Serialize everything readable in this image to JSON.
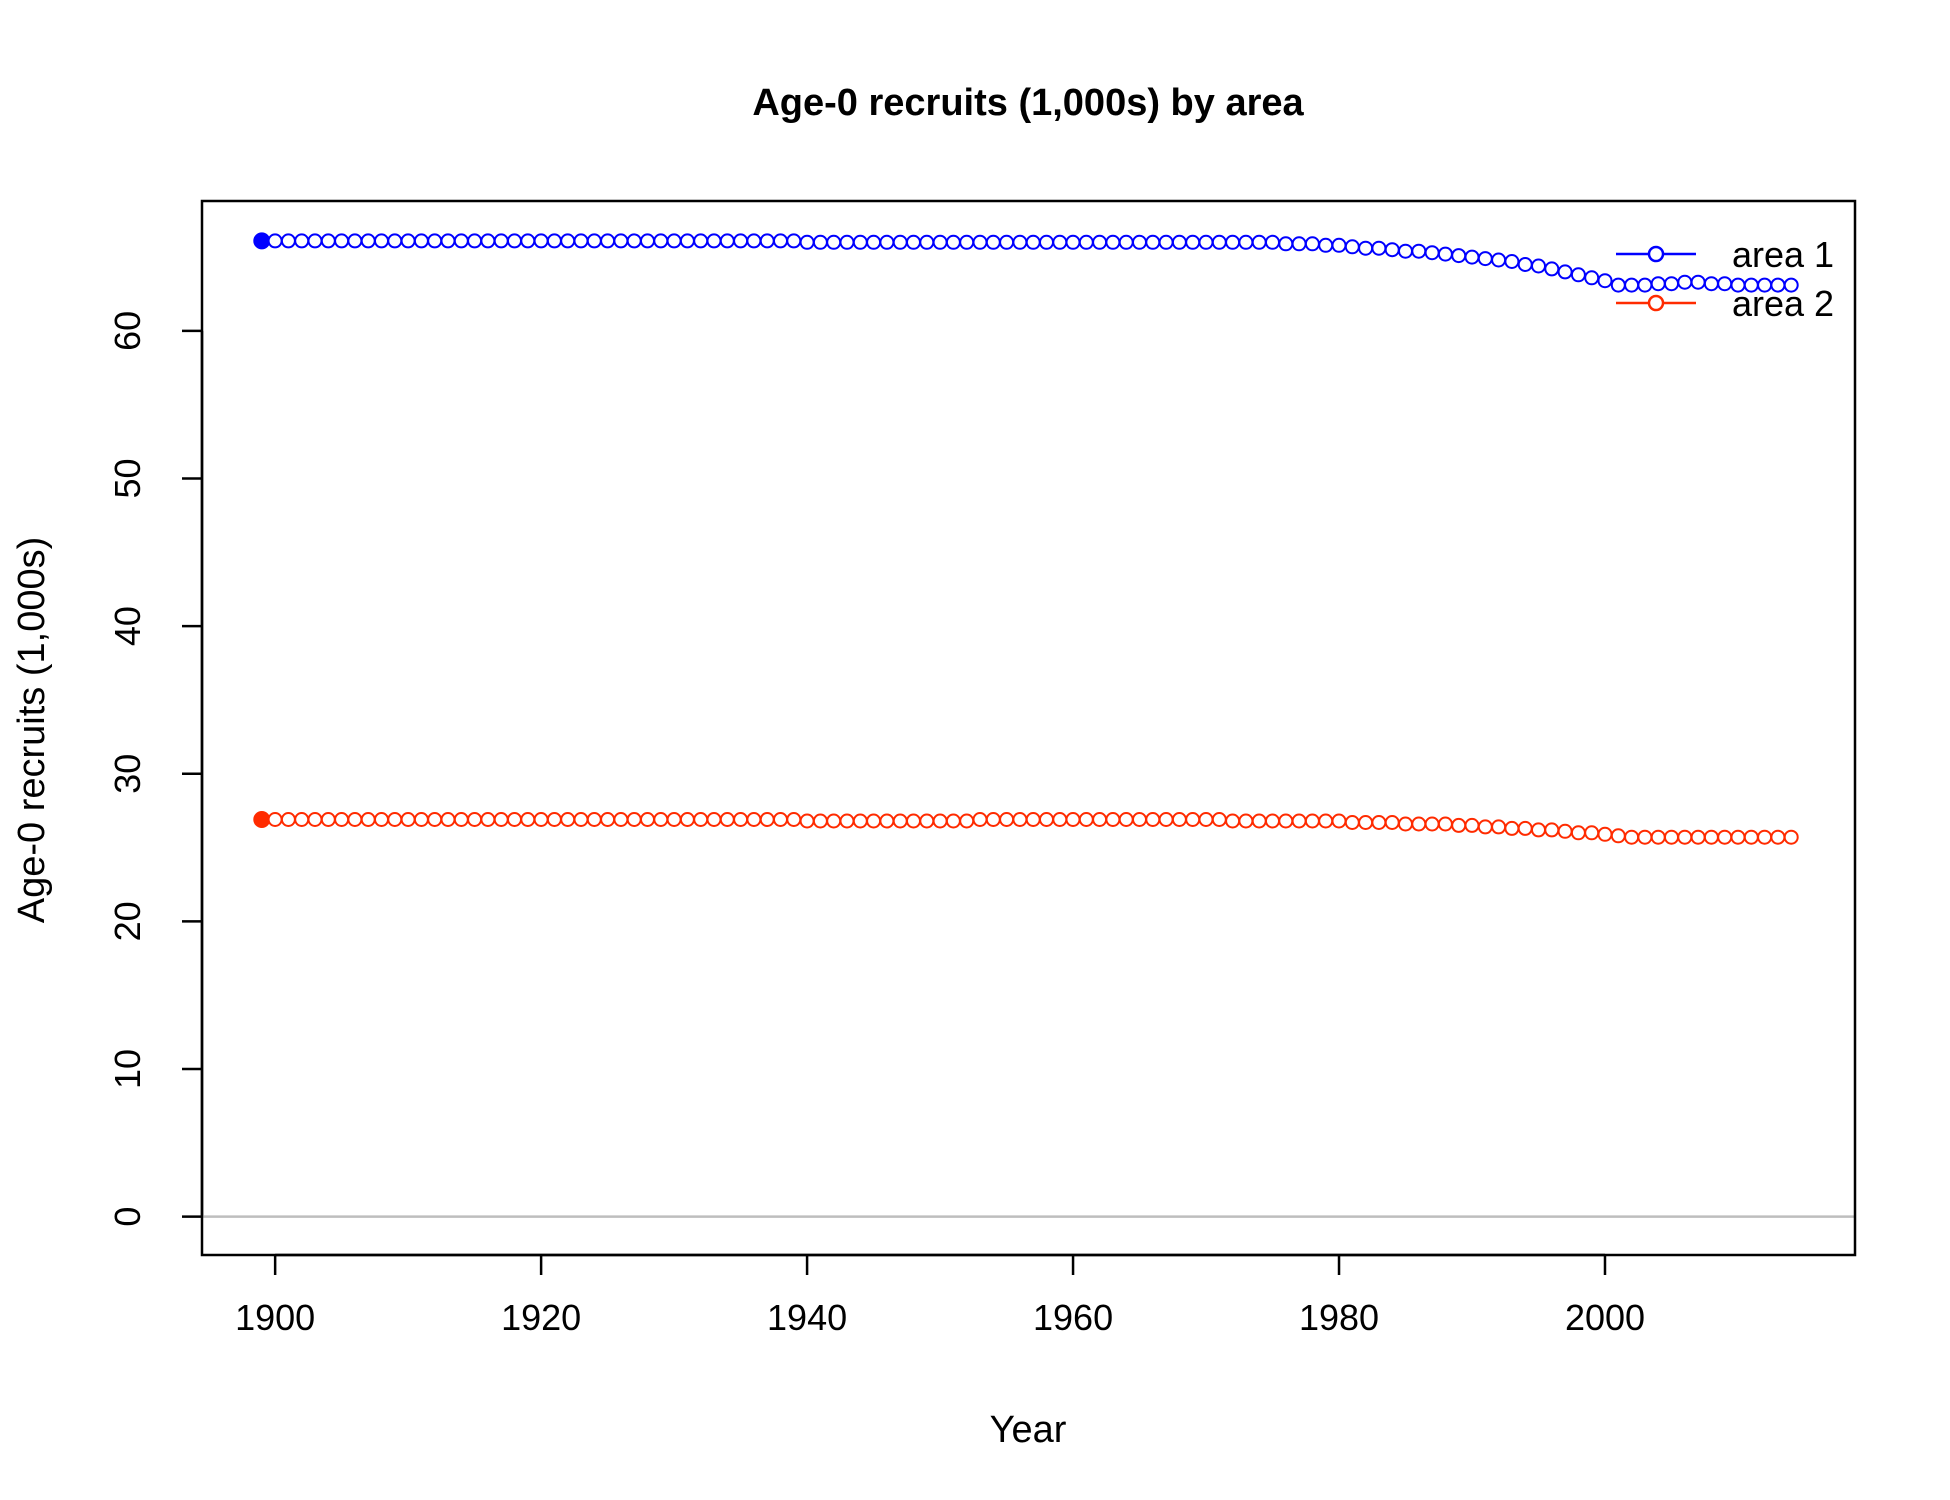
{
  "chart_data": {
    "type": "line",
    "title": "Age-0 recruits (1,000s) by area",
    "xlabel": "Year",
    "ylabel": "Age-0 recruits (1,000s)",
    "xlim": [
      1894.5,
      2018.8
    ],
    "ylim": [
      -2.6,
      68.8
    ],
    "xticks": [
      1900,
      1920,
      1940,
      1960,
      1980,
      2000
    ],
    "yticks": [
      0,
      10,
      20,
      30,
      40,
      50,
      60
    ],
    "reference_line": {
      "y": 0,
      "color": "#bebebe"
    },
    "grid": false,
    "legend": {
      "placement": "top-right",
      "entries": [
        "area 1",
        "area 2"
      ]
    },
    "x_start": 1899,
    "x_end": 2014,
    "series": [
      {
        "name": "area 1",
        "color": "#0000ff",
        "first_point_filled": true,
        "values": [
          66.1,
          66.1,
          66.1,
          66.1,
          66.1,
          66.1,
          66.1,
          66.1,
          66.1,
          66.1,
          66.1,
          66.1,
          66.1,
          66.1,
          66.1,
          66.1,
          66.1,
          66.1,
          66.1,
          66.1,
          66.1,
          66.1,
          66.1,
          66.1,
          66.1,
          66.1,
          66.1,
          66.1,
          66.1,
          66.1,
          66.1,
          66.1,
          66.1,
          66.1,
          66.1,
          66.1,
          66.1,
          66.1,
          66.1,
          66.1,
          66.1,
          66.0,
          66.0,
          66.0,
          66.0,
          66.0,
          66.0,
          66.0,
          66.0,
          66.0,
          66.0,
          66.0,
          66.0,
          66.0,
          66.0,
          66.0,
          66.0,
          66.0,
          66.0,
          66.0,
          66.0,
          66.0,
          66.0,
          66.0,
          66.0,
          66.0,
          66.0,
          66.0,
          66.0,
          66.0,
          66.0,
          66.0,
          66.0,
          66.0,
          66.0,
          66.0,
          66.0,
          65.9,
          65.9,
          65.9,
          65.8,
          65.8,
          65.7,
          65.6,
          65.6,
          65.5,
          65.4,
          65.4,
          65.3,
          65.2,
          65.1,
          65.0,
          64.9,
          64.8,
          64.7,
          64.5,
          64.4,
          64.2,
          64.0,
          63.8,
          63.6,
          63.4,
          63.1,
          63.1,
          63.1,
          63.2,
          63.2,
          63.3,
          63.3,
          63.2,
          63.2,
          63.1,
          63.1,
          63.1,
          63.1,
          63.1
        ]
      },
      {
        "name": "area 2",
        "color": "#ff2b00",
        "first_point_filled": true,
        "values": [
          26.9,
          26.9,
          26.9,
          26.9,
          26.9,
          26.9,
          26.9,
          26.9,
          26.9,
          26.9,
          26.9,
          26.9,
          26.9,
          26.9,
          26.9,
          26.9,
          26.9,
          26.9,
          26.9,
          26.9,
          26.9,
          26.9,
          26.9,
          26.9,
          26.9,
          26.9,
          26.9,
          26.9,
          26.9,
          26.9,
          26.9,
          26.9,
          26.9,
          26.9,
          26.9,
          26.9,
          26.9,
          26.9,
          26.9,
          26.9,
          26.9,
          26.8,
          26.8,
          26.8,
          26.8,
          26.8,
          26.8,
          26.8,
          26.8,
          26.8,
          26.8,
          26.8,
          26.8,
          26.8,
          26.9,
          26.9,
          26.9,
          26.9,
          26.9,
          26.9,
          26.9,
          26.9,
          26.9,
          26.9,
          26.9,
          26.9,
          26.9,
          26.9,
          26.9,
          26.9,
          26.9,
          26.9,
          26.9,
          26.8,
          26.8,
          26.8,
          26.8,
          26.8,
          26.8,
          26.8,
          26.8,
          26.8,
          26.7,
          26.7,
          26.7,
          26.7,
          26.6,
          26.6,
          26.6,
          26.6,
          26.5,
          26.5,
          26.4,
          26.4,
          26.3,
          26.3,
          26.2,
          26.2,
          26.1,
          26.0,
          26.0,
          25.9,
          25.8,
          25.7,
          25.7,
          25.7,
          25.7,
          25.7,
          25.7,
          25.7,
          25.7,
          25.7,
          25.7,
          25.7,
          25.7,
          25.7
        ]
      }
    ]
  }
}
